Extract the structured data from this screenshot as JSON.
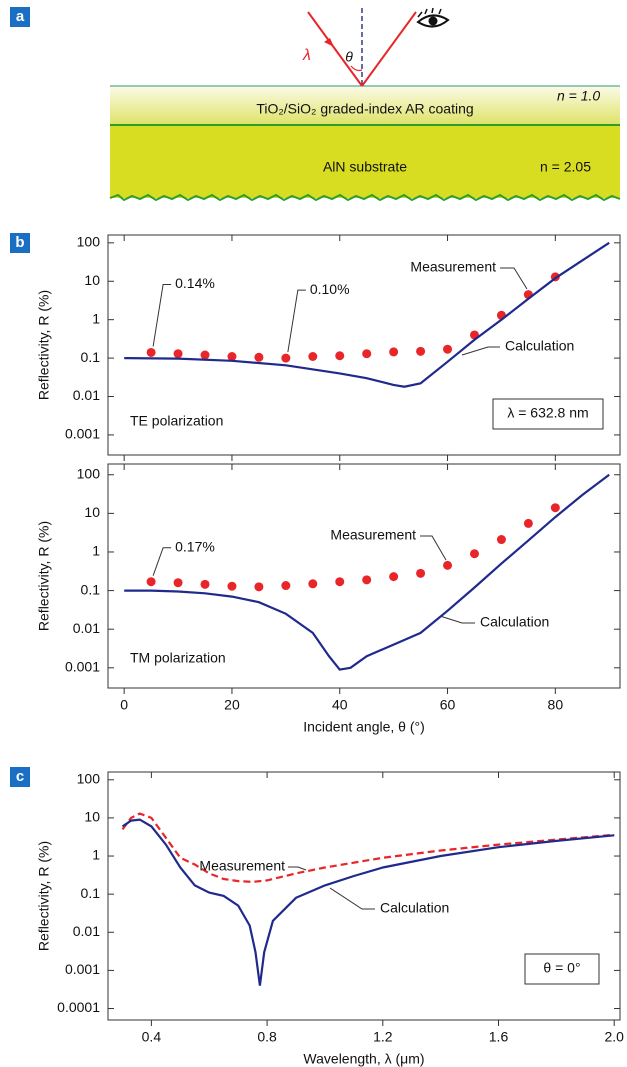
{
  "diagram": {
    "panel_label": "a",
    "wavelength": "λ",
    "angle": "θ",
    "n_air": "n = 1.0",
    "coating": "TiO₂/SiO₂ graded-index AR coating",
    "substrate": "AlN substrate",
    "n_substrate": "n = 2.05"
  },
  "chart_data": [
    {
      "type": "line",
      "panel_label": "b",
      "yscale": "log",
      "ylabel": "Reflectivity, R (%)",
      "xlim": [
        -3,
        92
      ],
      "xticks": [
        0,
        20,
        40,
        60,
        80
      ],
      "xtick_labels": false,
      "ylim": [
        0.0003,
        160
      ],
      "yticks": [
        0.001,
        0.01,
        0.1,
        1,
        10,
        100
      ],
      "series": [
        {
          "name": "Measurement",
          "color": "#e8262a",
          "marker": "dot",
          "x": [
            5,
            10,
            15,
            20,
            25,
            30,
            35,
            40,
            45,
            50,
            55,
            60,
            65,
            70,
            75,
            80
          ],
          "values": [
            0.14,
            0.13,
            0.12,
            0.11,
            0.105,
            0.1,
            0.11,
            0.115,
            0.13,
            0.145,
            0.15,
            0.17,
            0.4,
            1.3,
            4.5,
            13
          ],
          "value_labels": [
            "0.14%",
            null,
            null,
            null,
            null,
            "0.10%",
            null,
            null,
            null,
            null,
            null,
            null,
            null,
            null,
            null,
            null
          ]
        },
        {
          "name": "Calculation",
          "color": "#1f2a8c",
          "x": [
            0,
            10,
            20,
            30,
            40,
            45,
            50,
            52,
            55,
            60,
            65,
            70,
            75,
            80,
            85,
            90
          ],
          "values": [
            0.1,
            0.097,
            0.085,
            0.065,
            0.04,
            0.03,
            0.02,
            0.018,
            0.022,
            0.08,
            0.3,
            1.0,
            3.5,
            12,
            35,
            100
          ]
        }
      ],
      "annotations": [
        "TE polarization",
        "λ = 632.8 nm"
      ]
    },
    {
      "type": "line",
      "yscale": "log",
      "ylabel": "Reflectivity, R (%)",
      "xlabel": "Incident angle, θ (°)",
      "xlim": [
        -3,
        92
      ],
      "xticks": [
        0,
        20,
        40,
        60,
        80
      ],
      "xtick_labels": true,
      "ylim": [
        0.0003,
        190
      ],
      "yticks": [
        0.001,
        0.01,
        0.1,
        1,
        10,
        100
      ],
      "series": [
        {
          "name": "Measurement",
          "color": "#e8262a",
          "marker": "dot",
          "x": [
            5,
            10,
            15,
            20,
            25,
            30,
            35,
            40,
            45,
            50,
            55,
            60,
            65,
            70,
            75,
            80
          ],
          "values": [
            0.17,
            0.16,
            0.145,
            0.13,
            0.125,
            0.135,
            0.15,
            0.17,
            0.19,
            0.23,
            0.28,
            0.45,
            0.9,
            2.1,
            5.5,
            14
          ],
          "value_labels": [
            "0.17%",
            null,
            null,
            null,
            null,
            null,
            null,
            null,
            null,
            null,
            null,
            null,
            null,
            null,
            null,
            null
          ]
        },
        {
          "name": "Calculation",
          "color": "#1f2a8c",
          "x": [
            0,
            5,
            10,
            15,
            20,
            25,
            30,
            35,
            38,
            40,
            42,
            45,
            50,
            55,
            60,
            65,
            70,
            75,
            80,
            85,
            90
          ],
          "values": [
            0.1,
            0.1,
            0.095,
            0.085,
            0.07,
            0.05,
            0.025,
            0.008,
            0.002,
            0.0009,
            0.001,
            0.002,
            0.004,
            0.008,
            0.03,
            0.12,
            0.5,
            2,
            8,
            30,
            100
          ]
        }
      ],
      "annotations": [
        "TM polarization"
      ]
    },
    {
      "type": "line",
      "panel_label": "c",
      "yscale": "log",
      "ylabel": "Reflectivity, R (%)",
      "xlabel": "Wavelength, λ (μm)",
      "xlim": [
        0.25,
        2.02
      ],
      "xticks": [
        0.4,
        0.8,
        1.2,
        1.6,
        {
          "value": 2,
          "label": "2.0"
        }
      ],
      "xtick_labels": true,
      "ylim": [
        5e-05,
        160
      ],
      "yticks": [
        0.0001,
        0.001,
        0.01,
        0.1,
        1,
        10,
        100
      ],
      "series": [
        {
          "name": "Measurement",
          "color": "#e8262a",
          "dash": true,
          "x": [
            0.3,
            0.33,
            0.36,
            0.4,
            0.45,
            0.5,
            0.55,
            0.6,
            0.65,
            0.7,
            0.75,
            0.8,
            0.9,
            1.0,
            1.2,
            1.4,
            1.6,
            1.8,
            2.0
          ],
          "values": [
            5,
            10,
            13,
            10,
            3,
            0.9,
            0.6,
            0.35,
            0.25,
            0.22,
            0.21,
            0.23,
            0.35,
            0.5,
            0.9,
            1.4,
            2.0,
            2.7,
            3.6
          ]
        },
        {
          "name": "Calculation",
          "color": "#1f2a8c",
          "x": [
            0.3,
            0.33,
            0.36,
            0.4,
            0.45,
            0.5,
            0.55,
            0.6,
            0.65,
            0.7,
            0.74,
            0.76,
            0.775,
            0.79,
            0.82,
            0.9,
            1.0,
            1.1,
            1.2,
            1.4,
            1.6,
            1.8,
            2.0
          ],
          "values": [
            6,
            8.5,
            9,
            6,
            2,
            0.5,
            0.17,
            0.11,
            0.09,
            0.05,
            0.015,
            0.003,
            0.0004,
            0.003,
            0.02,
            0.08,
            0.17,
            0.3,
            0.5,
            1.0,
            1.7,
            2.5,
            3.5
          ]
        }
      ],
      "annotations": [
        "θ = 0°"
      ]
    }
  ]
}
